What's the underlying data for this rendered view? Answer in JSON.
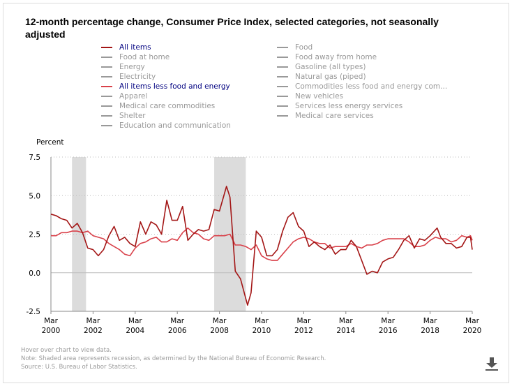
{
  "title": "12-month percentage change, Consumer Price Index, selected categories, not seasonally adjusted",
  "legend": {
    "left": [
      {
        "label": "All items",
        "active": true,
        "color": "#a31515"
      },
      {
        "label": "Food at home",
        "active": false
      },
      {
        "label": "Energy",
        "active": false
      },
      {
        "label": "Electricity",
        "active": false
      },
      {
        "label": "All items less food and energy",
        "active": true,
        "color": "#d9414a"
      },
      {
        "label": "Apparel",
        "active": false
      },
      {
        "label": "Medical care commodities",
        "active": false
      },
      {
        "label": "Shelter",
        "active": false
      },
      {
        "label": "Education and communication",
        "active": false
      }
    ],
    "right": [
      {
        "label": "Food",
        "active": false
      },
      {
        "label": "Food away from home",
        "active": false
      },
      {
        "label": "Gasoline (all types)",
        "active": false
      },
      {
        "label": "Natural gas (piped)",
        "active": false
      },
      {
        "label": "Commodities less food and energy com...",
        "active": false
      },
      {
        "label": "New vehicles",
        "active": false
      },
      {
        "label": "Services less energy services",
        "active": false
      },
      {
        "label": "Medical care services",
        "active": false
      }
    ]
  },
  "footnotes": [
    "Hover over chart to view data.",
    "Note: Shaded area represents recession, as determined by the National Bureau of Economic Research.",
    "Source: U.S. Bureau of Labor Statistics."
  ],
  "download_icon": "download-icon",
  "chart_data": {
    "type": "line",
    "ylabel": "Percent",
    "ylim": [
      -2.5,
      7.5
    ],
    "yticks": [
      "7.5",
      "5.0",
      "2.5",
      "0.0",
      "-2.5"
    ],
    "xlim": [
      "2000-03",
      "2020-03"
    ],
    "xticks": [
      {
        "m": "Mar",
        "y": "2000",
        "d": "2000-03"
      },
      {
        "m": "Mar",
        "y": "2002",
        "d": "2002-03"
      },
      {
        "m": "Mar",
        "y": "2004",
        "d": "2004-03"
      },
      {
        "m": "Mar",
        "y": "2006",
        "d": "2006-03"
      },
      {
        "m": "Mar",
        "y": "2008",
        "d": "2008-03"
      },
      {
        "m": "Mar",
        "y": "2010",
        "d": "2010-03"
      },
      {
        "m": "Mar",
        "y": "2012",
        "d": "2012-03"
      },
      {
        "m": "Mar",
        "y": "2014",
        "d": "2014-03"
      },
      {
        "m": "Mar",
        "y": "2016",
        "d": "2016-03"
      },
      {
        "m": "Mar",
        "y": "2018",
        "d": "2018-03"
      },
      {
        "m": "Mar",
        "y": "2020",
        "d": "2020-03"
      }
    ],
    "grid": "dotted horizontal",
    "recessions": [
      [
        "2001-03",
        "2001-11"
      ],
      [
        "2007-12",
        "2009-06"
      ]
    ],
    "series": [
      {
        "name": "All items",
        "color": "#a31515",
        "points": [
          [
            "2000-03",
            3.8
          ],
          [
            "2000-06",
            3.7
          ],
          [
            "2000-09",
            3.5
          ],
          [
            "2000-12",
            3.4
          ],
          [
            "2001-03",
            2.9
          ],
          [
            "2001-06",
            3.2
          ],
          [
            "2001-09",
            2.6
          ],
          [
            "2001-12",
            1.6
          ],
          [
            "2002-03",
            1.5
          ],
          [
            "2002-06",
            1.1
          ],
          [
            "2002-09",
            1.5
          ],
          [
            "2002-12",
            2.4
          ],
          [
            "2003-03",
            3.0
          ],
          [
            "2003-06",
            2.1
          ],
          [
            "2003-09",
            2.3
          ],
          [
            "2003-12",
            1.9
          ],
          [
            "2004-03",
            1.7
          ],
          [
            "2004-06",
            3.3
          ],
          [
            "2004-09",
            2.5
          ],
          [
            "2004-12",
            3.3
          ],
          [
            "2005-03",
            3.1
          ],
          [
            "2005-06",
            2.5
          ],
          [
            "2005-09",
            4.7
          ],
          [
            "2005-12",
            3.4
          ],
          [
            "2006-03",
            3.4
          ],
          [
            "2006-06",
            4.3
          ],
          [
            "2006-09",
            2.1
          ],
          [
            "2006-12",
            2.5
          ],
          [
            "2007-03",
            2.8
          ],
          [
            "2007-06",
            2.7
          ],
          [
            "2007-09",
            2.8
          ],
          [
            "2007-12",
            4.1
          ],
          [
            "2008-03",
            4.0
          ],
          [
            "2008-07",
            5.6
          ],
          [
            "2008-09",
            4.9
          ],
          [
            "2008-12",
            0.1
          ],
          [
            "2009-03",
            -0.4
          ],
          [
            "2009-07",
            -2.1
          ],
          [
            "2009-09",
            -1.3
          ],
          [
            "2009-12",
            2.7
          ],
          [
            "2010-03",
            2.3
          ],
          [
            "2010-06",
            1.1
          ],
          [
            "2010-09",
            1.1
          ],
          [
            "2010-12",
            1.5
          ],
          [
            "2011-03",
            2.7
          ],
          [
            "2011-06",
            3.6
          ],
          [
            "2011-09",
            3.9
          ],
          [
            "2011-12",
            3.0
          ],
          [
            "2012-03",
            2.7
          ],
          [
            "2012-06",
            1.7
          ],
          [
            "2012-09",
            2.0
          ],
          [
            "2012-12",
            1.7
          ],
          [
            "2013-03",
            1.5
          ],
          [
            "2013-06",
            1.8
          ],
          [
            "2013-09",
            1.2
          ],
          [
            "2013-12",
            1.5
          ],
          [
            "2014-03",
            1.5
          ],
          [
            "2014-06",
            2.1
          ],
          [
            "2014-09",
            1.7
          ],
          [
            "2014-12",
            0.8
          ],
          [
            "2015-03",
            -0.1
          ],
          [
            "2015-06",
            0.1
          ],
          [
            "2015-09",
            0.0
          ],
          [
            "2015-12",
            0.7
          ],
          [
            "2016-03",
            0.9
          ],
          [
            "2016-06",
            1.0
          ],
          [
            "2016-09",
            1.5
          ],
          [
            "2016-12",
            2.1
          ],
          [
            "2017-03",
            2.4
          ],
          [
            "2017-06",
            1.6
          ],
          [
            "2017-09",
            2.2
          ],
          [
            "2017-12",
            2.1
          ],
          [
            "2018-03",
            2.4
          ],
          [
            "2018-07",
            2.9
          ],
          [
            "2018-09",
            2.3
          ],
          [
            "2018-12",
            1.9
          ],
          [
            "2019-03",
            1.9
          ],
          [
            "2019-06",
            1.6
          ],
          [
            "2019-09",
            1.7
          ],
          [
            "2019-12",
            2.3
          ],
          [
            "2020-02",
            2.3
          ],
          [
            "2020-03",
            1.5
          ]
        ]
      },
      {
        "name": "All items less food and energy",
        "color": "#d9414a",
        "points": [
          [
            "2000-03",
            2.4
          ],
          [
            "2000-06",
            2.4
          ],
          [
            "2000-09",
            2.6
          ],
          [
            "2000-12",
            2.6
          ],
          [
            "2001-03",
            2.7
          ],
          [
            "2001-06",
            2.7
          ],
          [
            "2001-09",
            2.6
          ],
          [
            "2001-12",
            2.7
          ],
          [
            "2002-03",
            2.4
          ],
          [
            "2002-06",
            2.3
          ],
          [
            "2002-09",
            2.2
          ],
          [
            "2002-12",
            1.9
          ],
          [
            "2003-03",
            1.7
          ],
          [
            "2003-06",
            1.5
          ],
          [
            "2003-09",
            1.2
          ],
          [
            "2003-12",
            1.1
          ],
          [
            "2004-03",
            1.6
          ],
          [
            "2004-06",
            1.9
          ],
          [
            "2004-09",
            2.0
          ],
          [
            "2004-12",
            2.2
          ],
          [
            "2005-03",
            2.3
          ],
          [
            "2005-06",
            2.0
          ],
          [
            "2005-09",
            2.0
          ],
          [
            "2005-12",
            2.2
          ],
          [
            "2006-03",
            2.1
          ],
          [
            "2006-06",
            2.6
          ],
          [
            "2006-09",
            2.9
          ],
          [
            "2006-12",
            2.6
          ],
          [
            "2007-03",
            2.5
          ],
          [
            "2007-06",
            2.2
          ],
          [
            "2007-09",
            2.1
          ],
          [
            "2007-12",
            2.4
          ],
          [
            "2008-03",
            2.4
          ],
          [
            "2008-06",
            2.4
          ],
          [
            "2008-09",
            2.5
          ],
          [
            "2008-12",
            1.8
          ],
          [
            "2009-03",
            1.8
          ],
          [
            "2009-06",
            1.7
          ],
          [
            "2009-09",
            1.5
          ],
          [
            "2009-12",
            1.8
          ],
          [
            "2010-03",
            1.1
          ],
          [
            "2010-06",
            0.9
          ],
          [
            "2010-09",
            0.8
          ],
          [
            "2010-12",
            0.8
          ],
          [
            "2011-03",
            1.2
          ],
          [
            "2011-06",
            1.6
          ],
          [
            "2011-09",
            2.0
          ],
          [
            "2011-12",
            2.2
          ],
          [
            "2012-03",
            2.3
          ],
          [
            "2012-06",
            2.2
          ],
          [
            "2012-09",
            2.0
          ],
          [
            "2012-12",
            1.9
          ],
          [
            "2013-03",
            1.9
          ],
          [
            "2013-06",
            1.6
          ],
          [
            "2013-09",
            1.7
          ],
          [
            "2013-12",
            1.7
          ],
          [
            "2014-03",
            1.7
          ],
          [
            "2014-06",
            1.9
          ],
          [
            "2014-09",
            1.7
          ],
          [
            "2014-12",
            1.6
          ],
          [
            "2015-03",
            1.8
          ],
          [
            "2015-06",
            1.8
          ],
          [
            "2015-09",
            1.9
          ],
          [
            "2015-12",
            2.1
          ],
          [
            "2016-03",
            2.2
          ],
          [
            "2016-06",
            2.2
          ],
          [
            "2016-09",
            2.2
          ],
          [
            "2016-12",
            2.2
          ],
          [
            "2017-03",
            2.0
          ],
          [
            "2017-06",
            1.7
          ],
          [
            "2017-09",
            1.7
          ],
          [
            "2017-12",
            1.8
          ],
          [
            "2018-03",
            2.1
          ],
          [
            "2018-06",
            2.3
          ],
          [
            "2018-09",
            2.2
          ],
          [
            "2018-12",
            2.2
          ],
          [
            "2019-03",
            2.0
          ],
          [
            "2019-06",
            2.1
          ],
          [
            "2019-09",
            2.4
          ],
          [
            "2019-12",
            2.3
          ],
          [
            "2020-02",
            2.4
          ],
          [
            "2020-03",
            2.1
          ]
        ]
      }
    ]
  }
}
